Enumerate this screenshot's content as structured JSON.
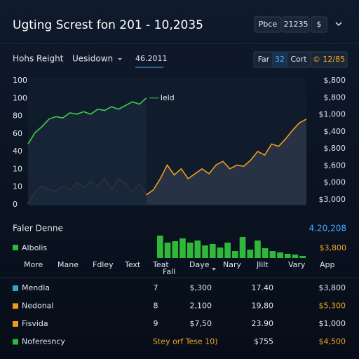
{
  "header": {
    "title": "Ugting Screst fon 201 - 10,2035",
    "controls": [
      "Pbce",
      "21235",
      "$"
    ]
  },
  "toolbar": {
    "left": "Hohs Reight",
    "dropdown": "Uesidown",
    "field": "46.2011",
    "right": [
      "Far",
      "32",
      "Cort",
      "© 12/85"
    ]
  },
  "main_chart": {
    "type": "line",
    "left_axis_labels": [
      "100",
      "100",
      "80",
      "60",
      "40",
      "10",
      "10",
      "0"
    ],
    "right_axis_labels": [
      "$,800",
      "$,800",
      "$1,000",
      "$,400",
      "$,800",
      "$,600",
      "$,000",
      "$3,000"
    ],
    "ylim": [
      0,
      100
    ],
    "series_label": "Ield",
    "series": [
      {
        "color": "#3fcf4a",
        "values": [
          49,
          58,
          63,
          69,
          71,
          70,
          74,
          73,
          75,
          73,
          77,
          76,
          79,
          77,
          80,
          83,
          81,
          86,
          null,
          null,
          null,
          null,
          null,
          null,
          null,
          null,
          null,
          null,
          null,
          null,
          null,
          null,
          null,
          null,
          null,
          null,
          null,
          null,
          null,
          null,
          null
        ]
      },
      {
        "color": "#f29a1e",
        "values": [
          1,
          10,
          15,
          12,
          11,
          15,
          12,
          18,
          14,
          19,
          15,
          21,
          12,
          21,
          17,
          10,
          17,
          8,
          12,
          21,
          32,
          24,
          29,
          21,
          25,
          29,
          25,
          32,
          35,
          29,
          32,
          31,
          36,
          43,
          40,
          49,
          47,
          53,
          60,
          66,
          69
        ]
      }
    ]
  },
  "section": {
    "title": "Faler Denne",
    "value": "4.20,208",
    "legend": "Albolis",
    "legend_value": "$3,800"
  },
  "bar_chart": {
    "type": "bar",
    "color": "#2fb83a",
    "ylim": [
      0,
      40
    ],
    "values": [
      32,
      22,
      24,
      28,
      22,
      25,
      18,
      20,
      15,
      22,
      10,
      30,
      12,
      25,
      14,
      10,
      8,
      6,
      5,
      3
    ]
  },
  "table": {
    "columns": [
      "More",
      "Mane",
      "Fdley",
      "Text",
      "Teat",
      "Daye",
      "Nary",
      "Jlilt",
      "Vary",
      "App"
    ],
    "column_sub": "Fall",
    "rows": [
      [
        "Mendla",
        "7",
        "$,300",
        "17.40",
        "$3,800"
      ],
      [
        "Nedonal",
        "8",
        "2,100",
        "19,80",
        "$5,300"
      ],
      [
        "Fisvida",
        "9",
        "$7,50",
        "23.90",
        "$1,000"
      ],
      [
        "Noferesncy",
        "Stey orf Tese 10)",
        "$755",
        "$4,500"
      ]
    ]
  }
}
